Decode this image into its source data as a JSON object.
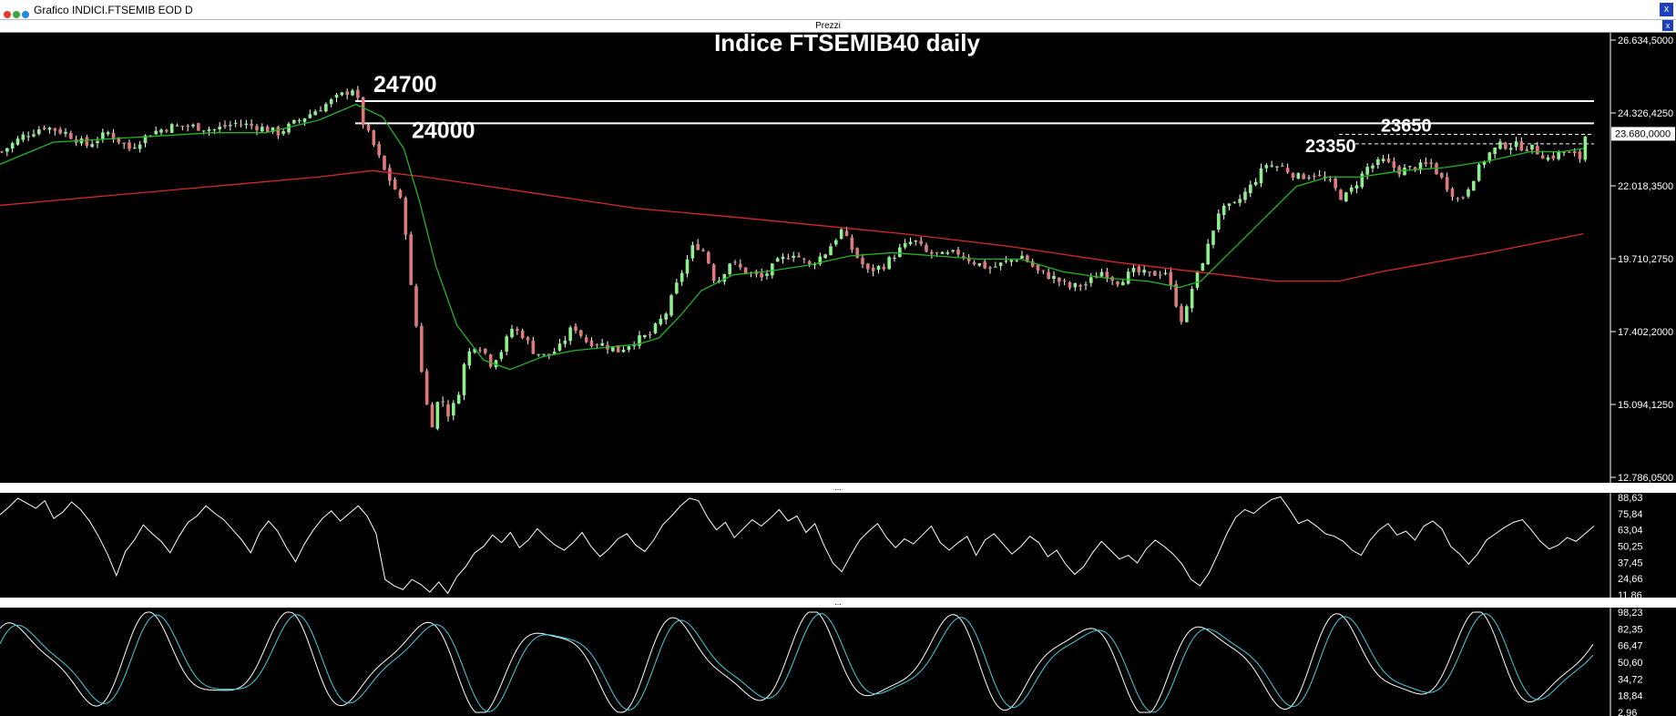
{
  "window": {
    "title": "Grafico INDICI.FTSEMIB EOD D",
    "close_label": "x"
  },
  "panel": {
    "header": "Prezzi",
    "close_label": "x",
    "separator": "..."
  },
  "chart_data": [
    {
      "type": "candlestick",
      "title": "Indice FTSEMIB40 daily",
      "ylim": [
        12786.05,
        26634.5
      ],
      "y_ticks": [
        "26.634,5000",
        "24.326,4250",
        "22.018,3500",
        "19.710,2750",
        "17.402,2000",
        "15.094,1250",
        "12.786,0500"
      ],
      "last_price_label": "23.680,0000",
      "levels": [
        {
          "label": "24700",
          "value": 24700,
          "style": "solid"
        },
        {
          "label": "24000",
          "value": 24000,
          "style": "solid"
        },
        {
          "label": "23650",
          "value": 23650,
          "style": "dashed"
        },
        {
          "label": "23350",
          "value": 23350,
          "style": "dashed"
        }
      ],
      "series": [
        {
          "kind": "moving-average-fast",
          "color": "#22b422"
        },
        {
          "kind": "moving-average-slow",
          "color": "#d42a2a"
        }
      ],
      "candle_colors": {
        "up": "#8cf08c",
        "down": "#e07a7a"
      },
      "price_path": [
        [
          0,
          23100
        ],
        [
          20,
          23600
        ],
        [
          40,
          23900
        ],
        [
          60,
          23700
        ],
        [
          80,
          23300
        ],
        [
          100,
          23700
        ],
        [
          120,
          23200
        ],
        [
          140,
          23700
        ],
        [
          160,
          23900
        ],
        [
          180,
          23900
        ],
        [
          200,
          23800
        ],
        [
          220,
          24000
        ],
        [
          240,
          23900
        ],
        [
          260,
          23700
        ],
        [
          280,
          24100
        ],
        [
          300,
          24500
        ],
        [
          320,
          24900
        ],
        [
          330,
          25100
        ],
        [
          335,
          24700
        ],
        [
          340,
          24000
        ],
        [
          350,
          23300
        ],
        [
          360,
          22500
        ],
        [
          372,
          21800
        ],
        [
          378,
          21300
        ],
        [
          385,
          18800
        ],
        [
          392,
          17100
        ],
        [
          398,
          15300
        ],
        [
          405,
          14500
        ],
        [
          412,
          15400
        ],
        [
          420,
          14800
        ],
        [
          428,
          15200
        ],
        [
          436,
          16500
        ],
        [
          444,
          17000
        ],
        [
          452,
          16900
        ],
        [
          460,
          16400
        ],
        [
          470,
          16800
        ],
        [
          480,
          17500
        ],
        [
          490,
          17300
        ],
        [
          500,
          16800
        ],
        [
          512,
          16600
        ],
        [
          525,
          16900
        ],
        [
          538,
          17600
        ],
        [
          550,
          17100
        ],
        [
          565,
          17000
        ],
        [
          580,
          16800
        ],
        [
          595,
          17100
        ],
        [
          610,
          17300
        ],
        [
          625,
          18000
        ],
        [
          640,
          19300
        ],
        [
          652,
          20200
        ],
        [
          662,
          19900
        ],
        [
          672,
          18900
        ],
        [
          685,
          19600
        ],
        [
          700,
          19300
        ],
        [
          715,
          19100
        ],
        [
          730,
          19600
        ],
        [
          745,
          19900
        ],
        [
          760,
          19500
        ],
        [
          775,
          19900
        ],
        [
          790,
          20600
        ],
        [
          802,
          19900
        ],
        [
          815,
          19300
        ],
        [
          830,
          19500
        ],
        [
          845,
          20000
        ],
        [
          858,
          20300
        ],
        [
          870,
          19900
        ],
        [
          885,
          19800
        ],
        [
          900,
          19900
        ],
        [
          915,
          19600
        ],
        [
          930,
          19400
        ],
        [
          945,
          19600
        ],
        [
          960,
          19800
        ],
        [
          975,
          19300
        ],
        [
          990,
          19100
        ],
        [
          1005,
          18800
        ],
        [
          1020,
          18900
        ],
        [
          1035,
          19300
        ],
        [
          1050,
          19000
        ],
        [
          1065,
          19300
        ],
        [
          1080,
          19200
        ],
        [
          1095,
          19300
        ],
        [
          1105,
          18300
        ],
        [
          1112,
          17600
        ],
        [
          1118,
          18600
        ],
        [
          1126,
          19300
        ],
        [
          1135,
          20100
        ],
        [
          1145,
          21200
        ],
        [
          1160,
          21400
        ],
        [
          1175,
          22000
        ],
        [
          1190,
          22700
        ],
        [
          1205,
          22600
        ],
        [
          1220,
          22300
        ],
        [
          1235,
          22400
        ],
        [
          1250,
          22100
        ],
        [
          1262,
          21600
        ],
        [
          1270,
          21900
        ],
        [
          1285,
          22600
        ],
        [
          1300,
          22800
        ],
        [
          1315,
          22500
        ],
        [
          1330,
          22600
        ],
        [
          1345,
          22700
        ],
        [
          1360,
          22000
        ],
        [
          1372,
          21500
        ],
        [
          1385,
          22300
        ],
        [
          1398,
          23000
        ],
        [
          1410,
          23300
        ],
        [
          1425,
          23300
        ],
        [
          1440,
          23200
        ],
        [
          1455,
          22900
        ],
        [
          1470,
          23100
        ],
        [
          1485,
          22900
        ],
        [
          1490,
          23600
        ]
      ],
      "fast_ma_path": [
        [
          0,
          22700
        ],
        [
          50,
          23400
        ],
        [
          100,
          23500
        ],
        [
          150,
          23600
        ],
        [
          200,
          23700
        ],
        [
          250,
          23700
        ],
        [
          300,
          24100
        ],
        [
          335,
          24600
        ],
        [
          360,
          24200
        ],
        [
          380,
          23200
        ],
        [
          395,
          21500
        ],
        [
          410,
          19500
        ],
        [
          430,
          17600
        ],
        [
          455,
          16500
        ],
        [
          480,
          16200
        ],
        [
          510,
          16600
        ],
        [
          540,
          16800
        ],
        [
          570,
          16900
        ],
        [
          600,
          17000
        ],
        [
          620,
          17200
        ],
        [
          640,
          17900
        ],
        [
          660,
          18700
        ],
        [
          690,
          19200
        ],
        [
          720,
          19300
        ],
        [
          760,
          19500
        ],
        [
          800,
          19800
        ],
        [
          840,
          19900
        ],
        [
          880,
          19800
        ],
        [
          920,
          19700
        ],
        [
          960,
          19700
        ],
        [
          1000,
          19300
        ],
        [
          1040,
          19100
        ],
        [
          1080,
          19000
        ],
        [
          1110,
          18800
        ],
        [
          1130,
          19000
        ],
        [
          1160,
          20000
        ],
        [
          1190,
          21000
        ],
        [
          1220,
          22000
        ],
        [
          1250,
          22300
        ],
        [
          1280,
          22300
        ],
        [
          1320,
          22500
        ],
        [
          1360,
          22600
        ],
        [
          1400,
          22800
        ],
        [
          1440,
          23100
        ],
        [
          1470,
          23100
        ],
        [
          1490,
          23200
        ]
      ],
      "slow_ma_path": [
        [
          0,
          21400
        ],
        [
          100,
          21700
        ],
        [
          200,
          22000
        ],
        [
          300,
          22300
        ],
        [
          350,
          22500
        ],
        [
          400,
          22300
        ],
        [
          500,
          21800
        ],
        [
          600,
          21300
        ],
        [
          700,
          21000
        ],
        [
          790,
          20700
        ],
        [
          850,
          20500
        ],
        [
          950,
          20100
        ],
        [
          1050,
          19600
        ],
        [
          1150,
          19200
        ],
        [
          1200,
          19000
        ],
        [
          1260,
          19000
        ],
        [
          1300,
          19300
        ],
        [
          1400,
          19900
        ],
        [
          1490,
          20500
        ]
      ]
    },
    {
      "type": "line",
      "name": "oscillator-1",
      "ylim": [
        11.86,
        88.63
      ],
      "y_ticks": [
        "88,63",
        "75,84",
        "63,04",
        "50,25",
        "37,45",
        "24,66",
        "11,86"
      ],
      "color": "#ffffff",
      "y": [
        75,
        81,
        88,
        84,
        80,
        86,
        72,
        77,
        85,
        79,
        70,
        58,
        44,
        27,
        46,
        55,
        67,
        60,
        54,
        45,
        58,
        69,
        74,
        82,
        76,
        71,
        63,
        55,
        45,
        61,
        70,
        62,
        49,
        38,
        52,
        63,
        72,
        78,
        70,
        76,
        82,
        74,
        60,
        24,
        19,
        16,
        24,
        20,
        14,
        22,
        13,
        26,
        34,
        45,
        50,
        59,
        53,
        61,
        49,
        55,
        64,
        57,
        51,
        47,
        53,
        61,
        50,
        42,
        48,
        56,
        60,
        51,
        46,
        55,
        67,
        74,
        82,
        88,
        86,
        73,
        63,
        69,
        57,
        64,
        71,
        66,
        72,
        79,
        70,
        74,
        61,
        68,
        51,
        37,
        30,
        43,
        55,
        62,
        68,
        57,
        49,
        56,
        52,
        59,
        66,
        53,
        47,
        53,
        58,
        43,
        55,
        60,
        52,
        44,
        50,
        58,
        53,
        42,
        47,
        36,
        28,
        34,
        45,
        54,
        47,
        40,
        43,
        37,
        48,
        55,
        50,
        44,
        36,
        24,
        19,
        29,
        44,
        60,
        73,
        79,
        76,
        82,
        87,
        89,
        79,
        68,
        71,
        66,
        60,
        58,
        54,
        47,
        43,
        55,
        63,
        68,
        59,
        62,
        55,
        66,
        70,
        64,
        50,
        44,
        36,
        44,
        55,
        60,
        65,
        69,
        71,
        63,
        54,
        48,
        51,
        57,
        54,
        60,
        66
      ]
    },
    {
      "type": "line",
      "name": "oscillator-2",
      "ylim": [
        2.96,
        98.23
      ],
      "y_ticks": [
        "98,23",
        "82,35",
        "66,47",
        "50,60",
        "34,72",
        "18,84",
        "2,96"
      ],
      "colors": [
        "#ffffff",
        "#40d0e0"
      ],
      "cycles": [
        {
          "period": 66,
          "phase": 0.6
        },
        {
          "period": 37,
          "phase": 1.9
        }
      ]
    }
  ]
}
